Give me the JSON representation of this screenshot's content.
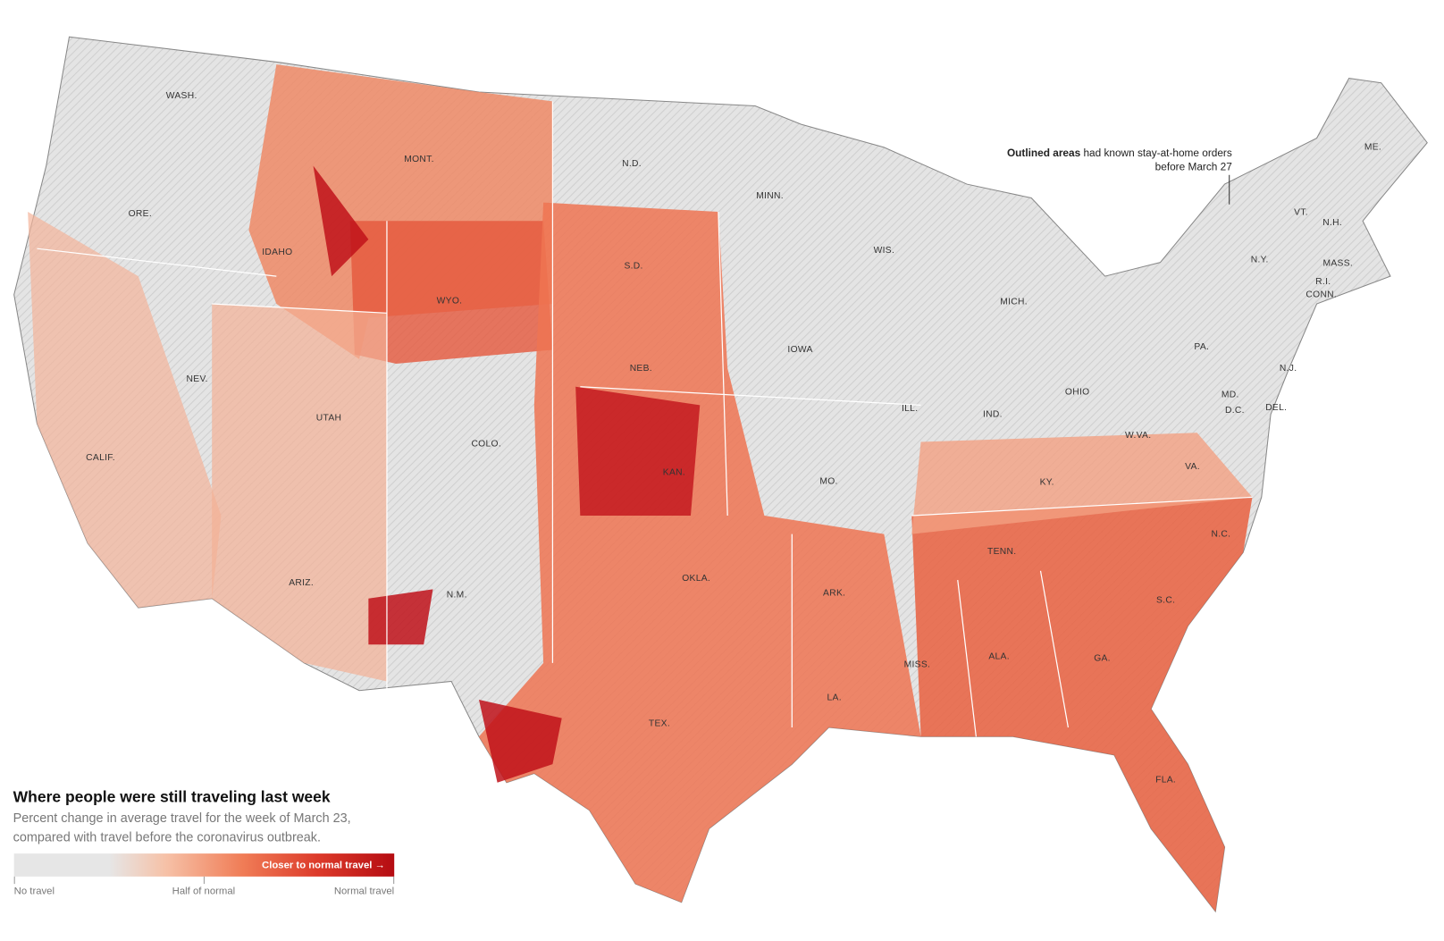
{
  "title": "Where people were still traveling last week",
  "subtitle": [
    "Percent change in average travel for the week of March 23,",
    "compared with travel before the coronavirus outbreak."
  ],
  "annotation": {
    "bold": "Outlined areas",
    "rest": "had known stay-at-home orders",
    "line2": "before March 27"
  },
  "legend": {
    "arrow_label": "Closer to normal travel →",
    "labels": [
      "No travel",
      "Half of normal",
      "Normal travel"
    ]
  },
  "states": [
    "WASH.",
    "ORE.",
    "IDAHO",
    "MONT.",
    "N.D.",
    "MINN.",
    "WIS.",
    "MICH.",
    "ME.",
    "VT.",
    "N.H.",
    "N.Y.",
    "MASS.",
    "R.I.",
    "CONN.",
    "PA.",
    "N.J.",
    "MD.",
    "D.C.",
    "DEL.",
    "OHIO",
    "IND.",
    "ILL.",
    "W.VA.",
    "KY.",
    "VA.",
    "TENN.",
    "N.C.",
    "S.C.",
    "GA.",
    "ALA.",
    "MISS.",
    "FLA.",
    "LA.",
    "ARK.",
    "MO.",
    "IOWA",
    "NEB.",
    "S.D.",
    "WYO.",
    "KAN.",
    "OKLA.",
    "TEX.",
    "N.M.",
    "COLO.",
    "UTAH",
    "NEV.",
    "ARIZ.",
    "CALIF."
  ]
}
